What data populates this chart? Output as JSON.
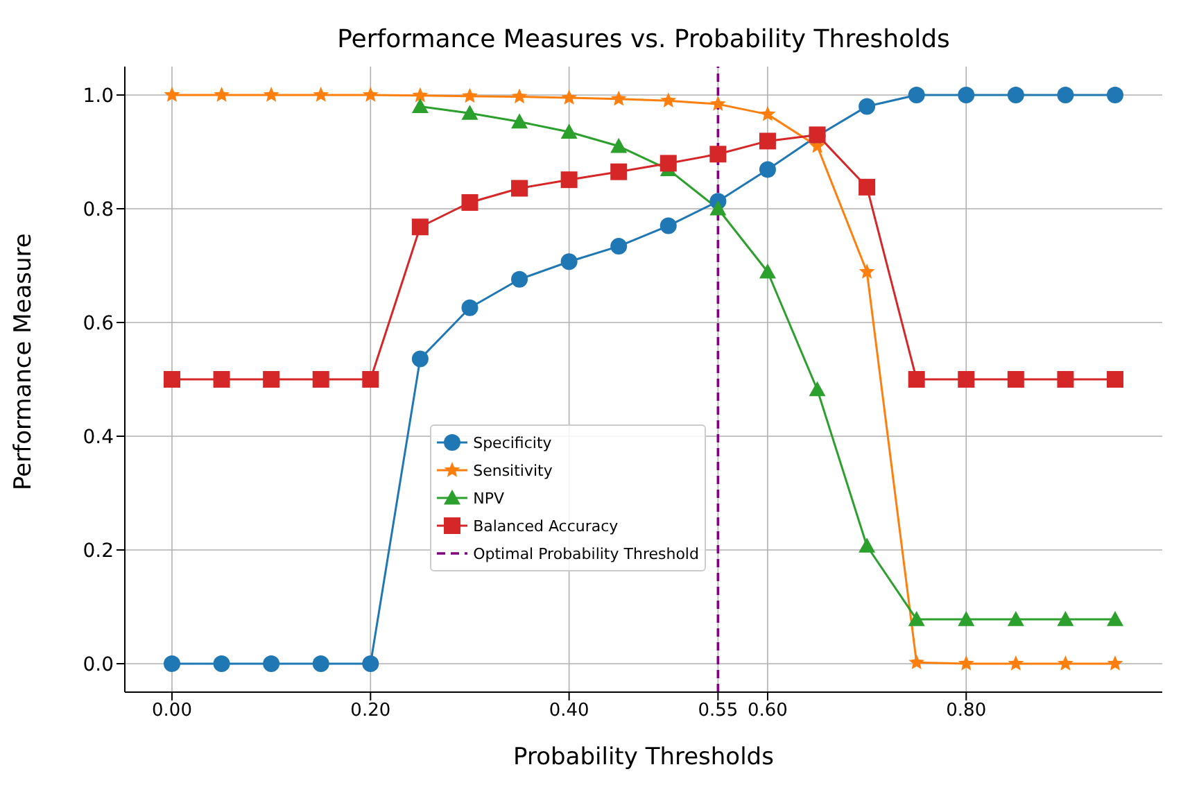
{
  "chart_data": {
    "type": "line",
    "title": "Performance Measures vs. Probability Thresholds",
    "xlabel": "Probability Thresholds",
    "ylabel": "Performance Measure",
    "x": [
      0,
      0.05,
      0.1,
      0.15,
      0.2,
      0.25,
      0.3,
      0.35,
      0.4,
      0.45,
      0.5,
      0.55,
      0.6,
      0.65,
      0.7,
      0.75,
      0.8,
      0.85,
      0.9,
      0.95
    ],
    "series": [
      {
        "name": "Specificity",
        "color": "#1f77b4",
        "marker": "circle",
        "values": [
          0,
          0,
          0,
          0,
          0,
          0.536,
          0.626,
          0.676,
          0.707,
          0.734,
          0.77,
          0.813,
          0.869,
          0.928,
          0.98,
          1,
          1,
          1,
          1,
          1
        ]
      },
      {
        "name": "Sensitivity",
        "color": "#ff7f0e",
        "marker": "star",
        "values": [
          1,
          1,
          1,
          1,
          1,
          0.999,
          0.998,
          0.997,
          0.995,
          0.993,
          0.99,
          0.984,
          0.966,
          0.91,
          0.689,
          0.002,
          0,
          0,
          0,
          0
        ]
      },
      {
        "name": "NPV",
        "color": "#2ca02c",
        "marker": "triangle",
        "values": [
          null,
          null,
          null,
          null,
          null,
          0.98,
          0.968,
          0.953,
          0.935,
          0.91,
          0.869,
          0.8,
          0.689,
          0.482,
          0.207,
          0.078,
          0.078,
          0.078,
          0.078,
          0.078
        ]
      },
      {
        "name": "Balanced Accuracy",
        "color": "#d62728",
        "marker": "square",
        "values": [
          0.5,
          0.5,
          0.5,
          0.5,
          0.5,
          0.768,
          0.811,
          0.836,
          0.851,
          0.865,
          0.88,
          0.896,
          0.919,
          0.93,
          0.838,
          0.5,
          0.5,
          0.5,
          0.5,
          0.5
        ]
      }
    ],
    "ref_lines": [
      {
        "axis": "x",
        "value": 0.55,
        "label": "Optimal Probability Threshold",
        "color": "#800080",
        "line_style": "dashed"
      }
    ],
    "xlim": [
      -0.0475,
      0.9975
    ],
    "xticks": [
      {
        "value": 0,
        "label": "0.00"
      },
      {
        "value": 0.2,
        "label": "0.20"
      },
      {
        "value": 0.4,
        "label": "0.40"
      },
      0.55,
      {
        "value": 0.6,
        "label": "0.60"
      },
      {
        "value": 0.8,
        "label": "0.80"
      }
    ],
    "ylim": [
      -0.05,
      1.05
    ],
    "yticks": [
      {
        "value": 0,
        "label": "0.0"
      },
      {
        "value": 0.2,
        "label": "0.2"
      },
      {
        "value": 0.4,
        "label": "0.4"
      },
      {
        "value": 0.6,
        "label": "0.6"
      },
      {
        "value": 0.8,
        "label": "0.8"
      },
      {
        "value": 1,
        "label": "1.0"
      }
    ],
    "grid": true,
    "legend": "bottom center",
    "line_style": "solid"
  }
}
